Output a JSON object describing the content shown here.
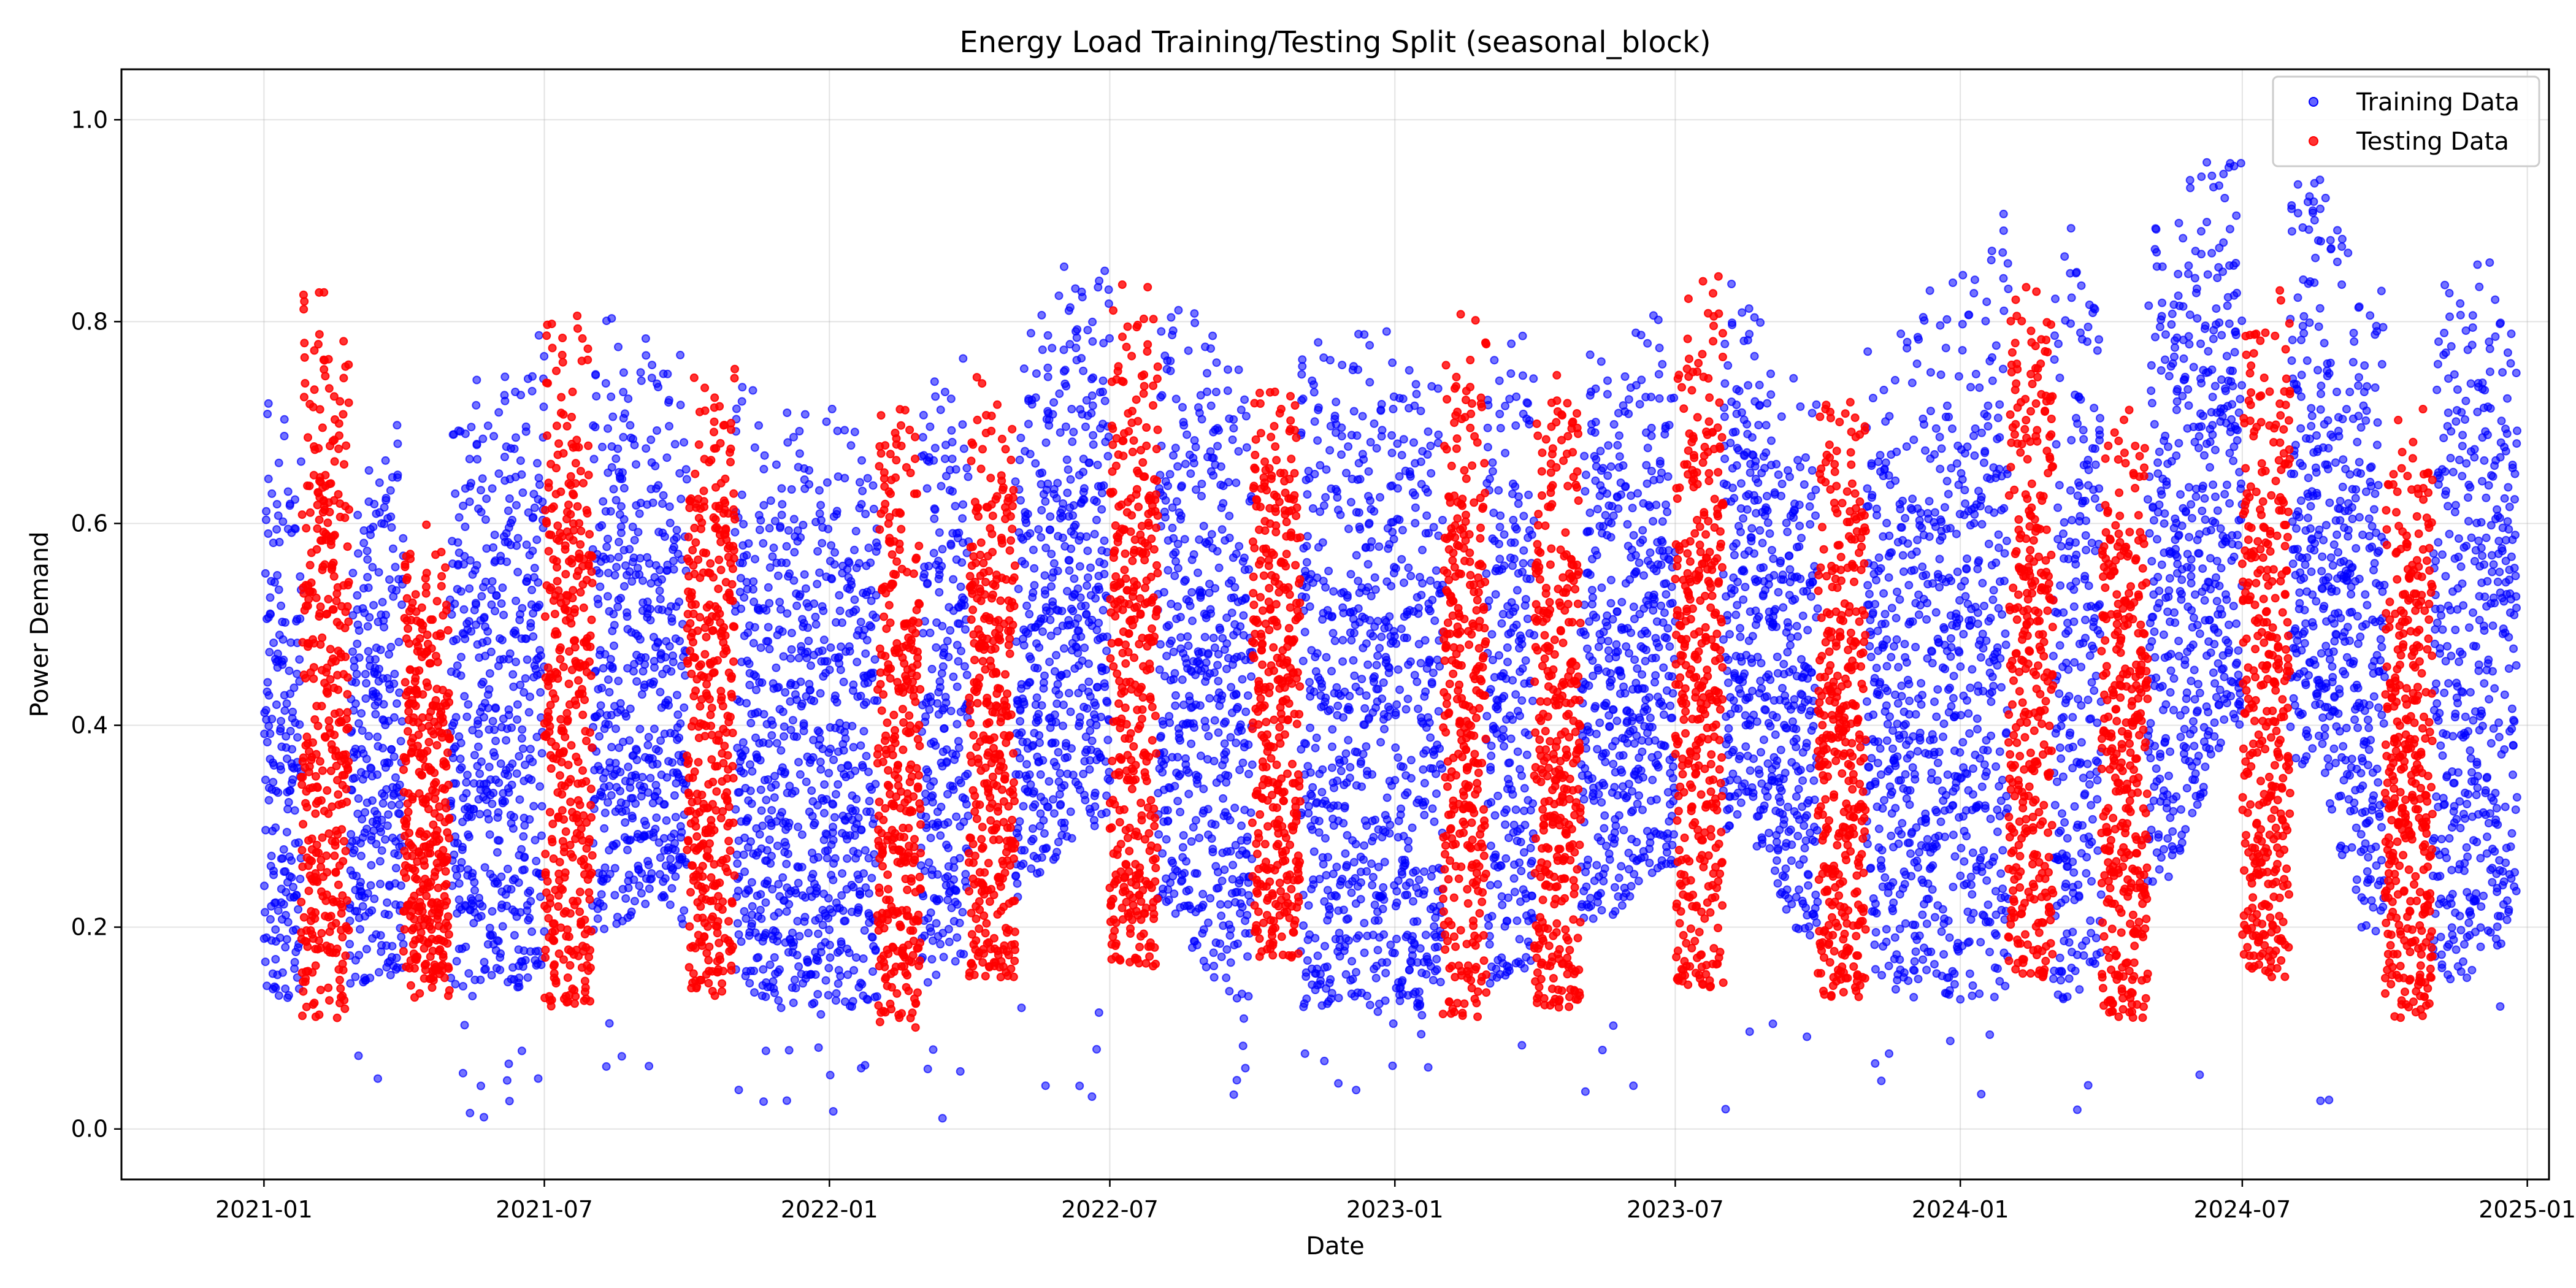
{
  "chart_data": {
    "type": "scatter",
    "title": "Energy Load Training/Testing Split (seasonal_block)",
    "xlabel": "Date",
    "ylabel": "Power Demand",
    "x_range": [
      "2020-10-01",
      "2025-01-15"
    ],
    "ylim": [
      -0.05,
      1.05
    ],
    "x_ticks": [
      "2021-01",
      "2021-07",
      "2022-01",
      "2022-07",
      "2023-01",
      "2023-07",
      "2024-01",
      "2024-07",
      "2025-01"
    ],
    "y_ticks": [
      "0.0",
      "0.2",
      "0.4",
      "0.6",
      "0.8",
      "1.0"
    ],
    "y_tick_values": [
      0.0,
      0.2,
      0.4,
      0.6,
      0.8,
      1.0
    ],
    "grid": true,
    "legend_position": "top-right",
    "x_data_range": [
      "2021-01-01",
      "2024-12-25"
    ],
    "series": [
      {
        "name": "Training Data",
        "color": "#0000ff",
        "envelope": [
          {
            "date": "2021-01-01",
            "min": 0.13,
            "max": 0.8
          },
          {
            "date": "2021-02-15",
            "min": 0.12,
            "max": 0.55
          },
          {
            "date": "2021-03-15",
            "min": 0.15,
            "max": 0.7
          },
          {
            "date": "2021-05-15",
            "min": 0.13,
            "max": 0.74
          },
          {
            "date": "2021-06-15",
            "min": 0.14,
            "max": 0.78
          },
          {
            "date": "2021-08-15",
            "min": 0.2,
            "max": 0.83
          },
          {
            "date": "2021-09-15",
            "min": 0.22,
            "max": 0.78
          },
          {
            "date": "2021-11-15",
            "min": 0.12,
            "max": 0.74
          },
          {
            "date": "2022-01-15",
            "min": 0.12,
            "max": 0.73
          },
          {
            "date": "2022-03-15",
            "min": 0.15,
            "max": 0.75
          },
          {
            "date": "2022-05-15",
            "min": 0.25,
            "max": 0.84
          },
          {
            "date": "2022-06-20",
            "min": 0.3,
            "max": 0.88
          },
          {
            "date": "2022-08-15",
            "min": 0.2,
            "max": 0.86
          },
          {
            "date": "2022-09-15",
            "min": 0.12,
            "max": 0.82
          },
          {
            "date": "2022-11-15",
            "min": 0.12,
            "max": 0.8
          },
          {
            "date": "2023-01-15",
            "min": 0.12,
            "max": 0.8
          },
          {
            "date": "2023-03-15",
            "min": 0.15,
            "max": 0.8
          },
          {
            "date": "2023-05-15",
            "min": 0.2,
            "max": 0.78
          },
          {
            "date": "2023-06-15",
            "min": 0.25,
            "max": 0.83
          },
          {
            "date": "2023-08-15",
            "min": 0.3,
            "max": 0.85
          },
          {
            "date": "2023-09-15",
            "min": 0.2,
            "max": 0.76
          },
          {
            "date": "2023-11-15",
            "min": 0.13,
            "max": 0.78
          },
          {
            "date": "2024-01-15",
            "min": 0.13,
            "max": 0.91
          },
          {
            "date": "2024-03-15",
            "min": 0.13,
            "max": 0.91
          },
          {
            "date": "2024-05-15",
            "min": 0.25,
            "max": 0.92
          },
          {
            "date": "2024-06-25",
            "min": 0.4,
            "max": 1.0
          },
          {
            "date": "2024-08-20",
            "min": 0.35,
            "max": 0.95
          },
          {
            "date": "2024-09-15",
            "min": 0.2,
            "max": 0.85
          },
          {
            "date": "2024-11-15",
            "min": 0.13,
            "max": 0.88
          },
          {
            "date": "2024-12-25",
            "min": 0.2,
            "max": 0.89
          }
        ]
      },
      {
        "name": "Testing Data",
        "color": "#ff0000",
        "blocks": [
          {
            "start": "2021-01-25",
            "end": "2021-02-25",
            "min": 0.11,
            "max": 0.84
          },
          {
            "start": "2021-04-01",
            "end": "2021-05-01",
            "min": 0.13,
            "max": 0.6
          },
          {
            "start": "2021-07-01",
            "end": "2021-08-01",
            "min": 0.12,
            "max": 0.81
          },
          {
            "start": "2021-10-01",
            "end": "2021-11-01",
            "min": 0.13,
            "max": 0.76
          },
          {
            "start": "2022-02-01",
            "end": "2022-03-01",
            "min": 0.1,
            "max": 0.74
          },
          {
            "start": "2022-04-01",
            "end": "2022-05-01",
            "min": 0.15,
            "max": 0.75
          },
          {
            "start": "2022-07-01",
            "end": "2022-08-01",
            "min": 0.16,
            "max": 0.84
          },
          {
            "start": "2022-10-01",
            "end": "2022-11-01",
            "min": 0.17,
            "max": 0.74
          },
          {
            "start": "2023-02-01",
            "end": "2023-03-01",
            "min": 0.11,
            "max": 0.81
          },
          {
            "start": "2023-04-01",
            "end": "2023-05-01",
            "min": 0.12,
            "max": 0.76
          },
          {
            "start": "2023-07-01",
            "end": "2023-08-01",
            "min": 0.14,
            "max": 0.85
          },
          {
            "start": "2023-10-01",
            "end": "2023-11-01",
            "min": 0.13,
            "max": 0.75
          },
          {
            "start": "2024-02-01",
            "end": "2024-03-01",
            "min": 0.15,
            "max": 0.84
          },
          {
            "start": "2024-04-01",
            "end": "2024-05-01",
            "min": 0.11,
            "max": 0.72
          },
          {
            "start": "2024-07-01",
            "end": "2024-08-01",
            "min": 0.15,
            "max": 0.85
          },
          {
            "start": "2024-10-01",
            "end": "2024-11-01",
            "min": 0.11,
            "max": 0.72
          }
        ]
      }
    ]
  }
}
